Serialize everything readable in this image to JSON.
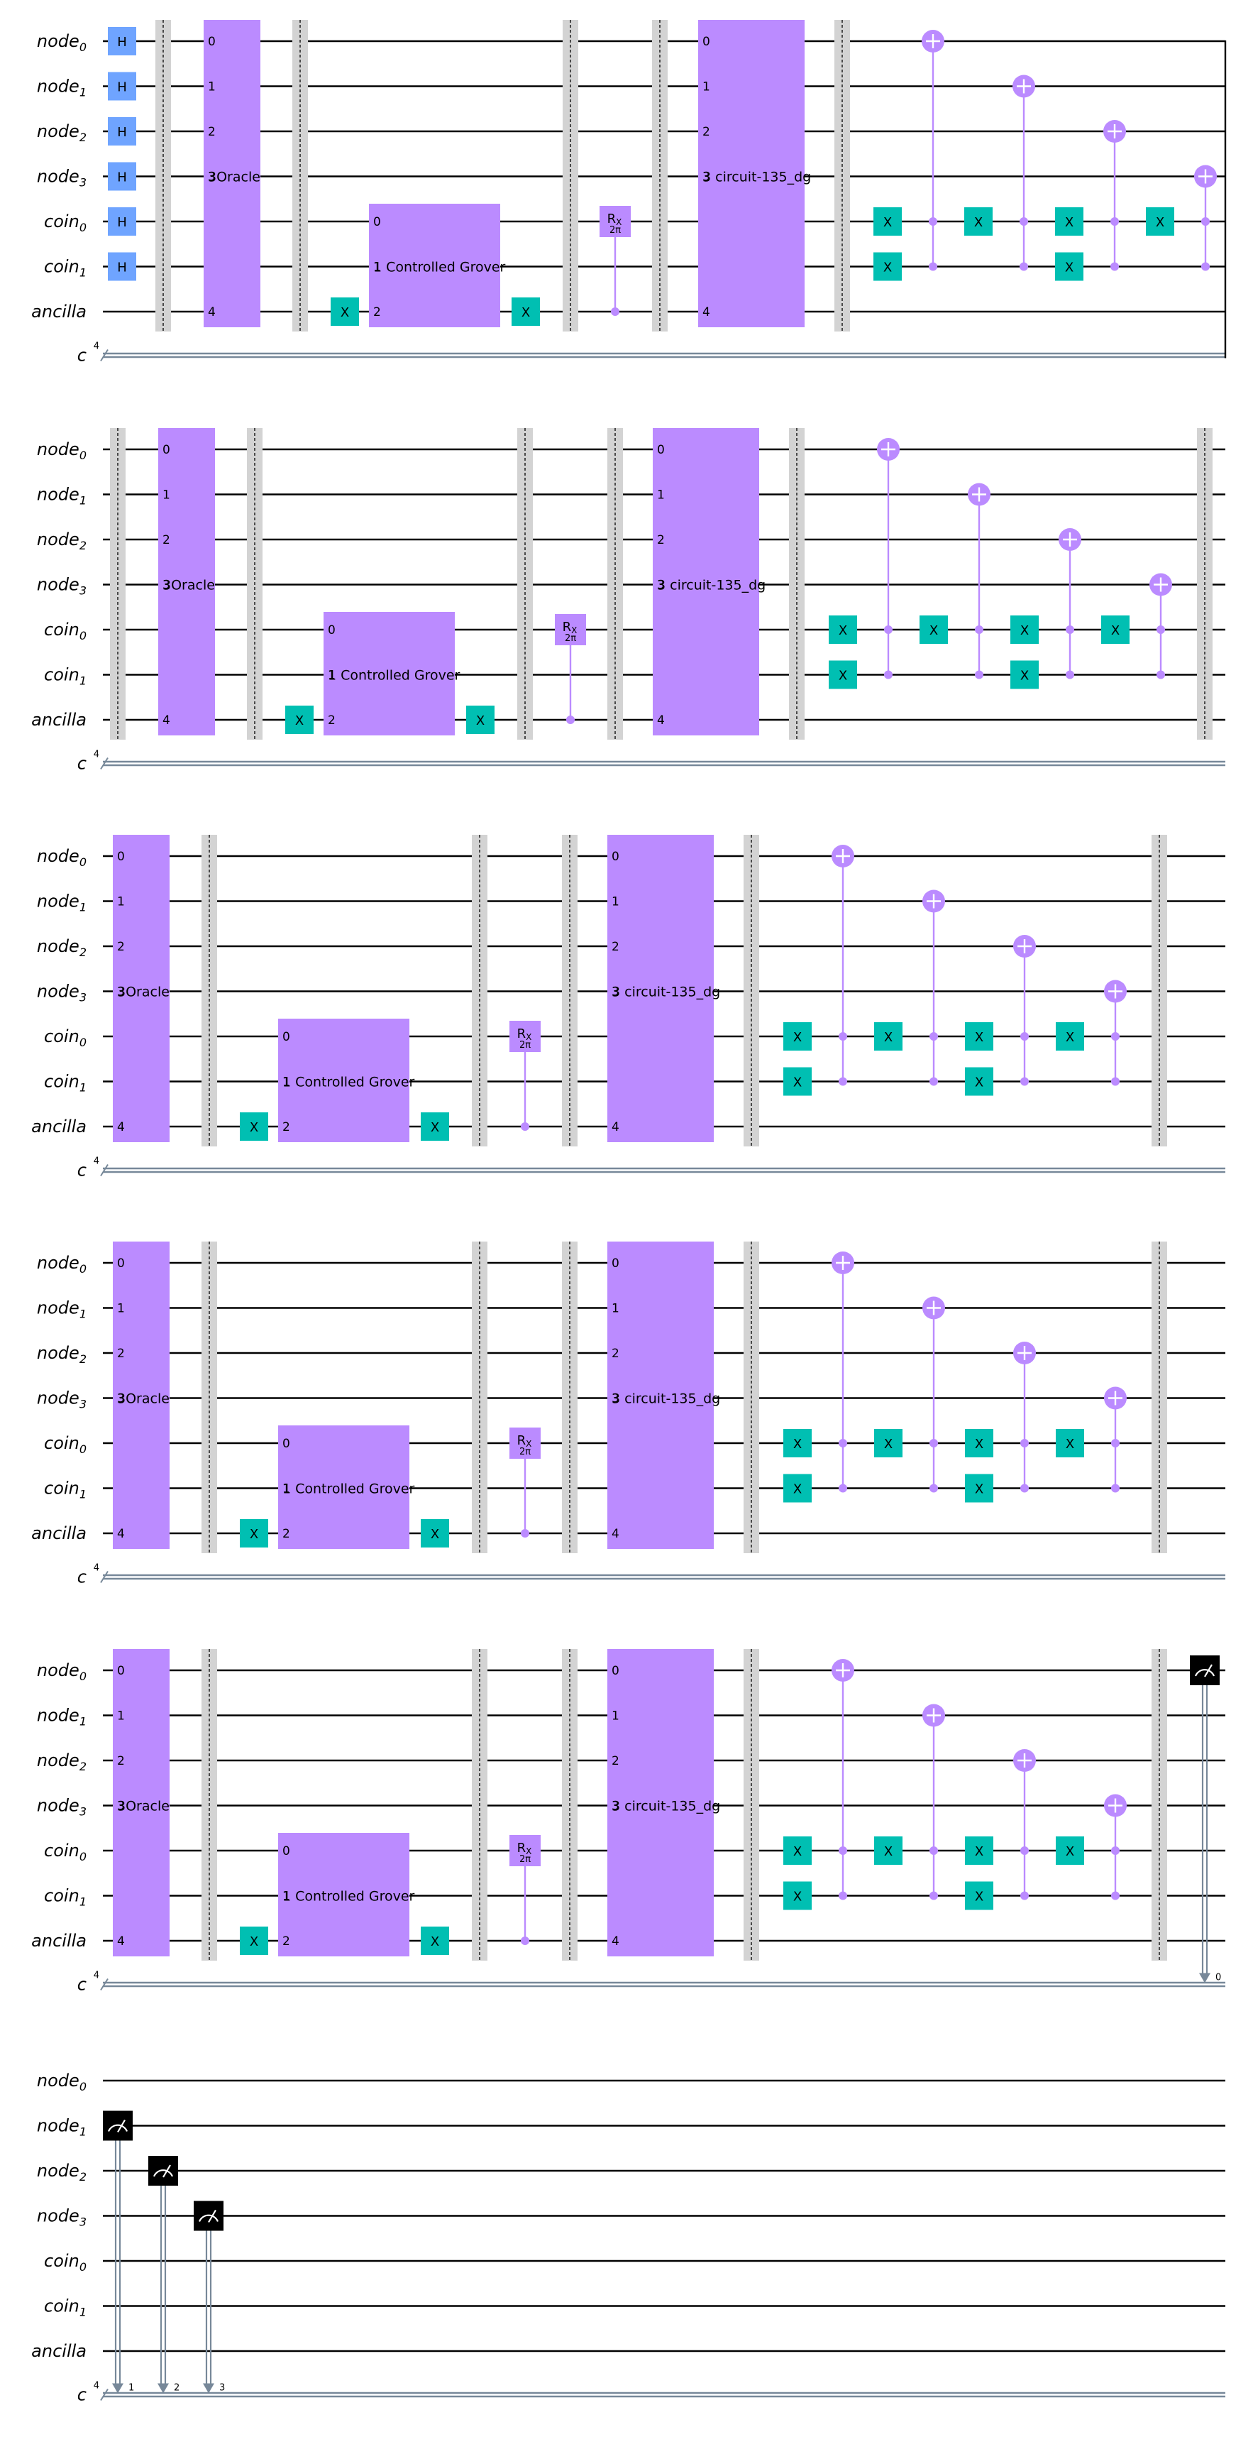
{
  "registers": [
    {
      "base": "node",
      "sub": "0"
    },
    {
      "base": "node",
      "sub": "1"
    },
    {
      "base": "node",
      "sub": "2"
    },
    {
      "base": "node",
      "sub": "3"
    },
    {
      "base": "coin",
      "sub": "0"
    },
    {
      "base": "coin",
      "sub": "1"
    },
    {
      "base": "ancilla",
      "sub": ""
    }
  ],
  "classical": {
    "name": "c",
    "size": "4"
  },
  "labels": {
    "h": "H",
    "x": "X",
    "rx": "R",
    "rx_sub": "X",
    "rx_param": "2π",
    "oracle": "Oracle",
    "grover": "Controlled Grover",
    "dg": "circuit-135_dg",
    "oracle_pins": [
      "0",
      "1",
      "2",
      "3",
      "4"
    ],
    "grover_pins": [
      "0",
      "1",
      "2"
    ],
    "dg_pins": [
      "0",
      "1",
      "2",
      "3",
      "4"
    ],
    "measure_bits": [
      "0",
      "1",
      "2",
      "3"
    ]
  },
  "colors": {
    "h_gate": "#6fa4ff",
    "x_gate": "#00bfb2",
    "custom_box": "#bb8bff",
    "controls": "#bb8bff",
    "barrier": "#d3d3d3",
    "measure": "#000000",
    "classical_wire": "#778899"
  }
}
